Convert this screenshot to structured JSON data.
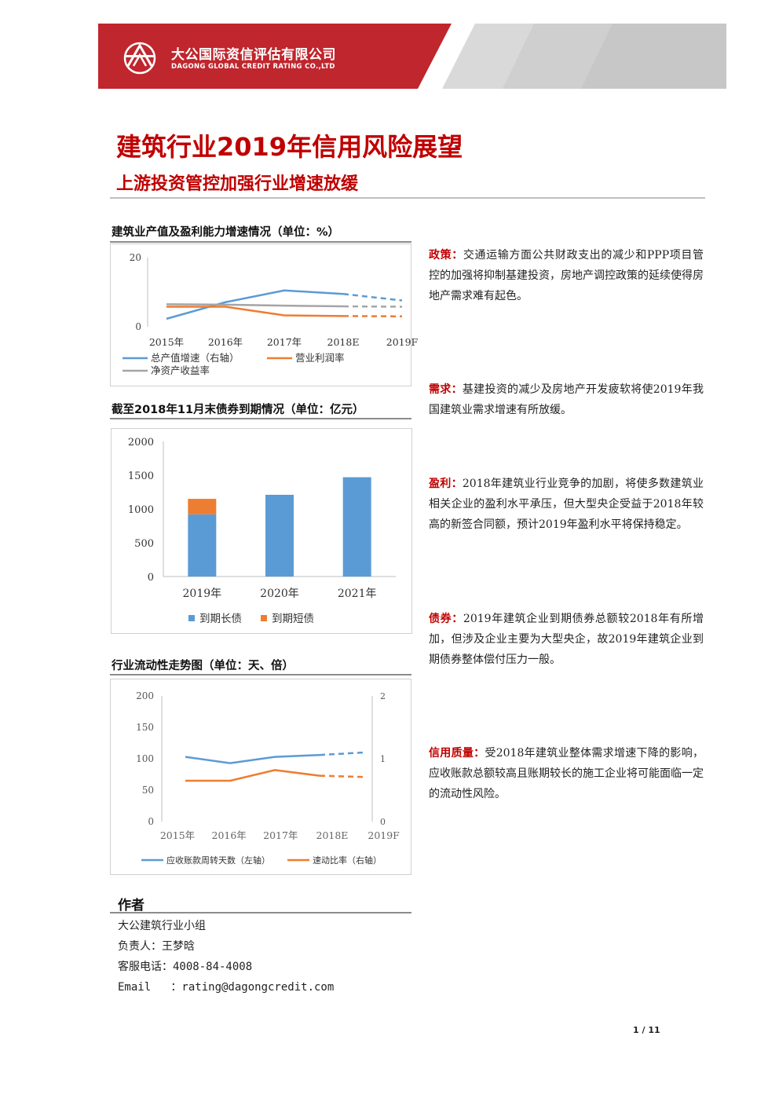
{
  "header": {
    "company_cn": "大公国际资信评估有限公司",
    "company_en": "DAGONG GLOBAL CREDIT RATING CO.,LTD",
    "brand_color": "#c0262d"
  },
  "title": {
    "main": "建筑行业2019年信用风险展望",
    "sub": "上游投资管控加强行业增速放缓"
  },
  "charts": {
    "c1_title": "建筑业产值及盈利能力增速情况（单位：%）",
    "c2_title": "截至2018年11月末债券到期情况（单位：亿元）",
    "c3_title": "行业流动性走势图（单位：天、倍）"
  },
  "chart_data": [
    {
      "type": "line",
      "title": "建筑业产值及盈利能力增速情况（单位：%）",
      "categories": [
        "2015年",
        "2016年",
        "2017年",
        "2018E",
        "2019F"
      ],
      "ylim": [
        0,
        20
      ],
      "y_ticks": [
        "20",
        "0"
      ],
      "forecast_from_index": 3,
      "series": [
        {
          "name": "总产值增速（右轴）",
          "values": [
            2.3,
            7.1,
            10.5,
            9.5,
            7.6
          ],
          "color": "#5b9bd5"
        },
        {
          "name": "营业利润率",
          "values": [
            5.8,
            5.8,
            3.3,
            3.1,
            3.0
          ],
          "color": "#ed7d31"
        },
        {
          "name": "净资产收益率",
          "values": [
            6.5,
            6.4,
            6.1,
            5.9,
            5.8
          ],
          "color": "#a5a5a5"
        }
      ]
    },
    {
      "type": "bar",
      "title": "截至2018年11月末债券到期情况（单位：亿元）",
      "categories": [
        "2019年",
        "2020年",
        "2021年"
      ],
      "ylim": [
        0,
        2000
      ],
      "y_ticks": [
        "2000",
        "1500",
        "1000",
        "500",
        "0"
      ],
      "stacked": true,
      "series": [
        {
          "name": "到期长债",
          "values": [
            920,
            1210,
            1470
          ],
          "color": "#5b9bd5"
        },
        {
          "name": "到期短债",
          "values": [
            230,
            0,
            0
          ],
          "color": "#ed7d31"
        }
      ]
    },
    {
      "type": "line",
      "title": "行业流动性走势图（单位：天、倍）",
      "categories": [
        "2015年",
        "2016年",
        "2017年",
        "2018E",
        "2019F"
      ],
      "ylim": [
        0,
        200
      ],
      "y_ticks": [
        "200",
        "150",
        "100",
        "50",
        "0"
      ],
      "y2lim": [
        0,
        2
      ],
      "y2_ticks": [
        "2",
        "1",
        "0"
      ],
      "forecast_from_index": 3,
      "series": [
        {
          "name": "应收账款周转天数（左轴）",
          "values": [
            103,
            93,
            103,
            106,
            110
          ],
          "color": "#5b9bd5",
          "axis": "left"
        },
        {
          "name": "速动比率（右轴）",
          "values": [
            0.65,
            0.65,
            0.82,
            0.73,
            0.71
          ],
          "color": "#ed7d31",
          "axis": "right"
        }
      ]
    }
  ],
  "sections": [
    {
      "label": "政策：",
      "text": "交通运输方面公共财政支出的减少和PPP项目管控的加强将抑制基建投资，房地产调控政策的延续使得房地产需求难有起色。"
    },
    {
      "label": "需求：",
      "text": "基建投资的减少及房地产开发疲软将使2019年我国建筑业需求增速有所放缓。"
    },
    {
      "label": "盈利：",
      "text": "2018年建筑业行业竞争的加剧，将使多数建筑业相关企业的盈利水平承压，但大型央企受益于2018年较高的新签合同额，预计2019年盈利水平将保持稳定。"
    },
    {
      "label": "债券：",
      "text": "2019年建筑企业到期债券总额较2018年有所增加，但涉及企业主要为大型央企，故2019年建筑企业到期债券整体偿付压力一般。"
    },
    {
      "label": "信用质量：",
      "text": "受2018年建筑业整体需求增速下降的影响，应收账款总额较高且账期较长的施工企业将可能面临一定的流动性风险。"
    }
  ],
  "author": {
    "title": "作者",
    "group": "大公建筑行业小组",
    "lead": "负责人：王梦晗",
    "phone": "客服电话：4008-84-4008",
    "email": "Email   ：rating@dagongcredit.com"
  },
  "page": "1 / 11"
}
